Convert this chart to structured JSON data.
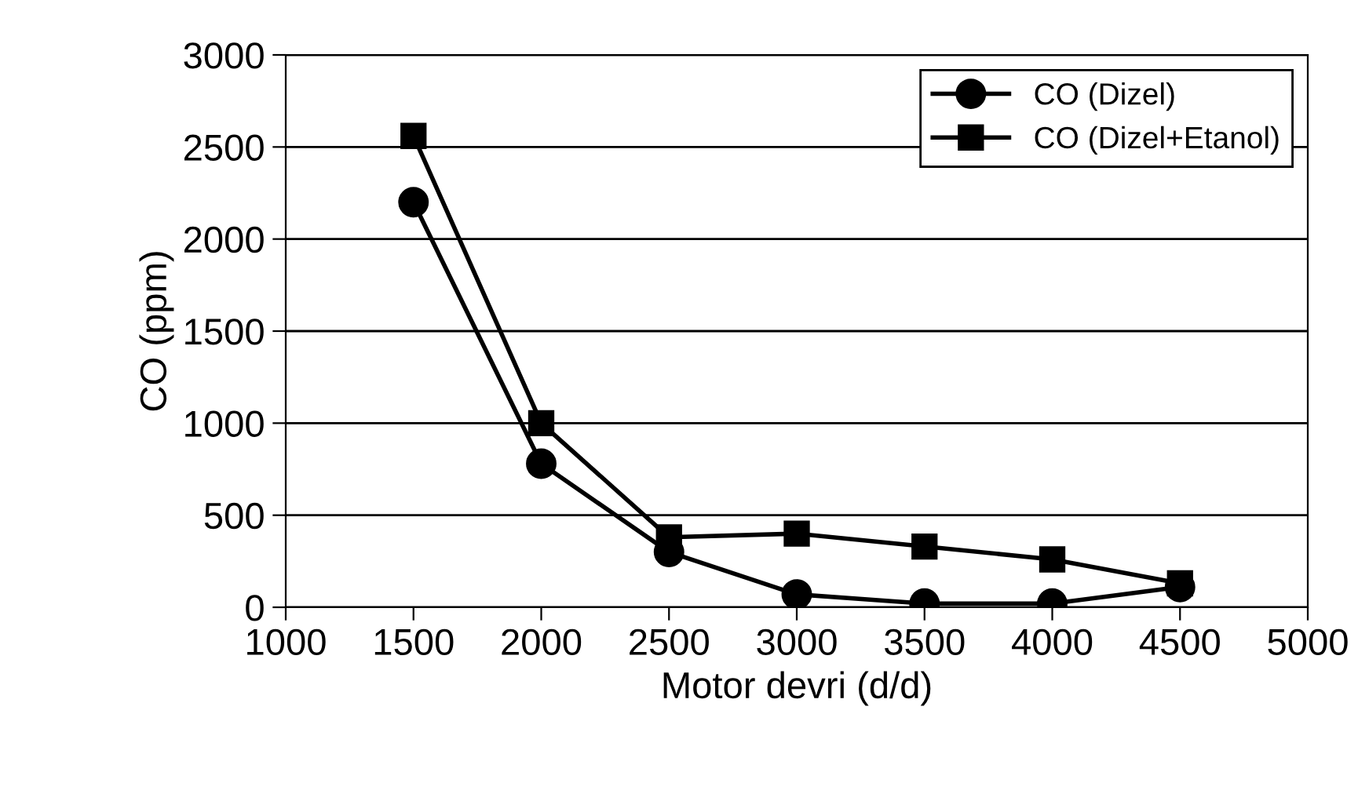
{
  "chart_data": {
    "type": "line",
    "xlabel": "Motor devri (d/d)",
    "ylabel": "CO (ppm)",
    "x": [
      1500,
      2000,
      2500,
      3000,
      3500,
      4000,
      4500
    ],
    "series": [
      {
        "name": "CO (Dizel)",
        "color": "#000000",
        "marker": "circle",
        "values": [
          2200,
          780,
          300,
          70,
          20,
          20,
          110
        ]
      },
      {
        "name": "CO (Dizel+Etanol)",
        "color": "#000000",
        "marker": "square",
        "values": [
          2560,
          1000,
          380,
          400,
          330,
          260,
          130
        ]
      }
    ],
    "xlim": [
      1000,
      5000
    ],
    "xticks": [
      1000,
      1500,
      2000,
      2500,
      3000,
      3500,
      4000,
      4500,
      5000
    ],
    "ylim": [
      0,
      3000
    ],
    "yticks": [
      0,
      500,
      1000,
      1500,
      2000,
      2500,
      3000
    ],
    "grid": "y",
    "legend": "top right",
    "line_style": "solid"
  }
}
